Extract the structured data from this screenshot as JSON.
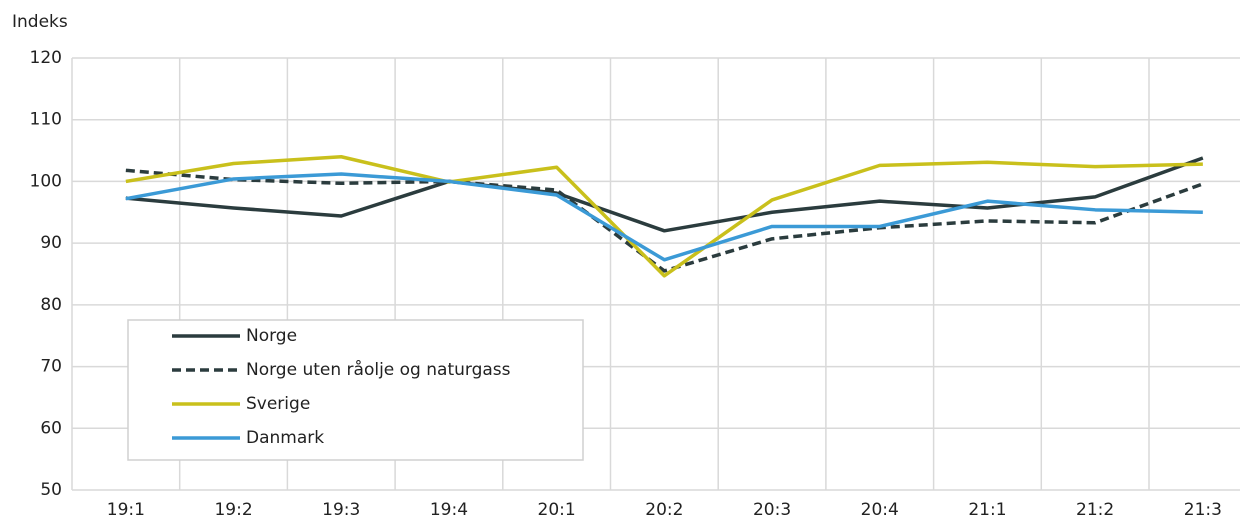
{
  "chart_data": {
    "type": "line",
    "y_label": "Indeks",
    "categories": [
      "19:1",
      "19:2",
      "19:3",
      "19:4",
      "20:1",
      "20:2",
      "20:3",
      "20:4",
      "21:1",
      "21:2",
      "21:3"
    ],
    "series": [
      {
        "name": "Norge",
        "color": "#2b3c3e",
        "dashed": false,
        "values": [
          97.3,
          95.7,
          94.4,
          100,
          98.1,
          92,
          95,
          96.8,
          95.7,
          97.5,
          103.8
        ]
      },
      {
        "name": "Norge uten råolje og naturgass",
        "color": "#2b3c3e",
        "dashed": true,
        "values": [
          101.8,
          100.3,
          99.7,
          100,
          98.6,
          85.5,
          90.7,
          92.5,
          93.6,
          93.3,
          99.6
        ]
      },
      {
        "name": "Sverige",
        "color": "#c9c01c",
        "dashed": false,
        "values": [
          100,
          102.9,
          104,
          99.9,
          102.3,
          84.7,
          97,
          102.6,
          103.1,
          102.4,
          102.8
        ]
      },
      {
        "name": "Danmark",
        "color": "#3b9ad6",
        "dashed": false,
        "values": [
          97.2,
          100.4,
          101.2,
          100,
          97.8,
          87.3,
          92.7,
          92.7,
          96.8,
          95.4,
          95
        ]
      }
    ],
    "ylim": [
      50,
      120
    ],
    "yticks": [
      50,
      60,
      70,
      80,
      90,
      100,
      110,
      120
    ],
    "grid": true,
    "legend": "lower left"
  }
}
